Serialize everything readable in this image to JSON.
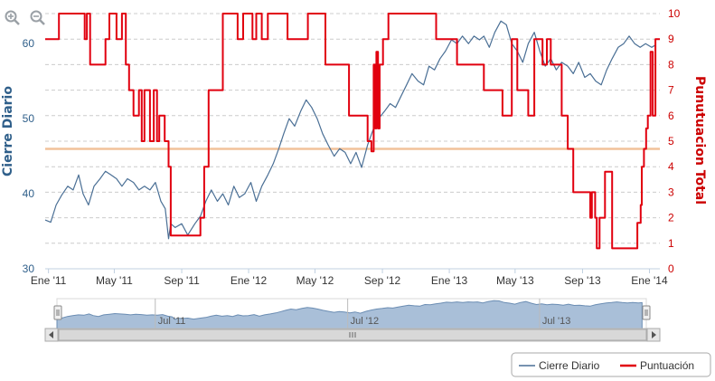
{
  "chart_data": {
    "type": "line",
    "title": "",
    "x_tick_labels": [
      "Ene '11",
      "May '11",
      "Sep '11",
      "Ene '12",
      "May '12",
      "Sep '12",
      "Ene '13",
      "May '13",
      "Sep '13",
      "Ene '14"
    ],
    "x_range": [
      "2010-12-26",
      "2014-01-20"
    ],
    "navigator_labels": [
      "Jul '11",
      "Jul '12",
      "Jul '13"
    ],
    "y_left": {
      "label": "Cierre Diario",
      "ticks": [
        "30",
        "40",
        "50",
        "60"
      ],
      "range": [
        30,
        64
      ],
      "color": "#2f5f8a"
    },
    "y_right": {
      "label": "Punutuacion Total",
      "ticks": [
        "0",
        "1",
        "2",
        "3",
        "4",
        "5",
        "6",
        "7",
        "8",
        "9",
        "10"
      ],
      "range": [
        0,
        10
      ],
      "color": "#cc0000"
    },
    "threshold": {
      "value": 4.7,
      "axis": "right",
      "color": "#f2c29a"
    },
    "series": [
      {
        "name": "Cierre Diario",
        "axis": "left",
        "color": "#4a6f95",
        "points": [
          [
            "2010-12-26",
            36.5
          ],
          [
            "2011-01-05",
            36.2
          ],
          [
            "2011-01-15",
            38.5
          ],
          [
            "2011-01-25",
            39.8
          ],
          [
            "2011-02-05",
            41.0
          ],
          [
            "2011-02-15",
            40.5
          ],
          [
            "2011-02-25",
            42.5
          ],
          [
            "2011-03-05",
            40.0
          ],
          [
            "2011-03-15",
            38.5
          ],
          [
            "2011-03-25",
            41.0
          ],
          [
            "2011-04-05",
            42.0
          ],
          [
            "2011-04-15",
            43.0
          ],
          [
            "2011-04-25",
            42.5
          ],
          [
            "2011-05-05",
            42.0
          ],
          [
            "2011-05-15",
            41.0
          ],
          [
            "2011-05-25",
            42.0
          ],
          [
            "2011-06-05",
            41.5
          ],
          [
            "2011-06-15",
            40.5
          ],
          [
            "2011-06-25",
            41.0
          ],
          [
            "2011-07-05",
            40.5
          ],
          [
            "2011-07-15",
            41.5
          ],
          [
            "2011-07-25",
            39.0
          ],
          [
            "2011-08-02",
            38.0
          ],
          [
            "2011-08-08",
            34.0
          ],
          [
            "2011-08-12",
            36.0
          ],
          [
            "2011-08-20",
            35.5
          ],
          [
            "2011-09-01",
            36.0
          ],
          [
            "2011-09-12",
            34.5
          ],
          [
            "2011-09-25",
            36.0
          ],
          [
            "2011-10-05",
            37.0
          ],
          [
            "2011-10-15",
            39.0
          ],
          [
            "2011-10-25",
            40.5
          ],
          [
            "2011-11-05",
            39.0
          ],
          [
            "2011-11-15",
            40.0
          ],
          [
            "2011-11-25",
            38.5
          ],
          [
            "2011-12-05",
            41.0
          ],
          [
            "2011-12-15",
            39.5
          ],
          [
            "2011-12-25",
            40.0
          ],
          [
            "2012-01-05",
            41.5
          ],
          [
            "2012-01-15",
            39.0
          ],
          [
            "2012-01-25",
            41.0
          ],
          [
            "2012-02-05",
            42.5
          ],
          [
            "2012-02-15",
            44.0
          ],
          [
            "2012-02-25",
            46.0
          ],
          [
            "2012-03-05",
            48.0
          ],
          [
            "2012-03-15",
            50.0
          ],
          [
            "2012-03-25",
            49.0
          ],
          [
            "2012-04-05",
            51.0
          ],
          [
            "2012-04-15",
            52.5
          ],
          [
            "2012-04-25",
            51.5
          ],
          [
            "2012-05-05",
            50.0
          ],
          [
            "2012-05-15",
            48.0
          ],
          [
            "2012-05-25",
            46.5
          ],
          [
            "2012-06-05",
            45.0
          ],
          [
            "2012-06-15",
            46.0
          ],
          [
            "2012-06-25",
            45.5
          ],
          [
            "2012-07-05",
            44.0
          ],
          [
            "2012-07-15",
            45.5
          ],
          [
            "2012-07-25",
            43.5
          ],
          [
            "2012-08-05",
            46.5
          ],
          [
            "2012-08-15",
            48.5
          ],
          [
            "2012-08-25",
            50.0
          ],
          [
            "2012-09-05",
            51.0
          ],
          [
            "2012-09-15",
            52.0
          ],
          [
            "2012-09-25",
            51.5
          ],
          [
            "2012-10-05",
            53.0
          ],
          [
            "2012-10-15",
            54.5
          ],
          [
            "2012-10-25",
            56.0
          ],
          [
            "2012-11-05",
            55.0
          ],
          [
            "2012-11-15",
            54.5
          ],
          [
            "2012-11-25",
            57.0
          ],
          [
            "2012-12-05",
            56.5
          ],
          [
            "2012-12-15",
            58.0
          ],
          [
            "2012-12-25",
            59.0
          ],
          [
            "2013-01-05",
            60.5
          ],
          [
            "2013-01-15",
            60.0
          ],
          [
            "2013-01-25",
            61.0
          ],
          [
            "2013-02-05",
            60.0
          ],
          [
            "2013-02-15",
            61.0
          ],
          [
            "2013-02-25",
            60.5
          ],
          [
            "2013-03-05",
            61.0
          ],
          [
            "2013-03-15",
            59.5
          ],
          [
            "2013-03-25",
            61.5
          ],
          [
            "2013-04-05",
            63.0
          ],
          [
            "2013-04-15",
            62.5
          ],
          [
            "2013-04-25",
            60.0
          ],
          [
            "2013-05-05",
            59.0
          ],
          [
            "2013-05-15",
            57.5
          ],
          [
            "2013-05-25",
            60.0
          ],
          [
            "2013-06-05",
            61.5
          ],
          [
            "2013-06-15",
            59.0
          ],
          [
            "2013-06-25",
            57.0
          ],
          [
            "2013-07-05",
            58.0
          ],
          [
            "2013-07-15",
            56.5
          ],
          [
            "2013-07-25",
            57.5
          ],
          [
            "2013-08-05",
            57.0
          ],
          [
            "2013-08-15",
            56.0
          ],
          [
            "2013-08-25",
            57.5
          ],
          [
            "2013-09-05",
            55.5
          ],
          [
            "2013-09-15",
            56.0
          ],
          [
            "2013-09-25",
            55.0
          ],
          [
            "2013-10-05",
            54.5
          ],
          [
            "2013-10-15",
            56.5
          ],
          [
            "2013-10-25",
            58.0
          ],
          [
            "2013-11-05",
            59.5
          ],
          [
            "2013-11-15",
            60.0
          ],
          [
            "2013-11-25",
            61.0
          ],
          [
            "2013-12-05",
            60.0
          ],
          [
            "2013-12-15",
            59.5
          ],
          [
            "2013-12-25",
            60.0
          ],
          [
            "2014-01-05",
            59.5
          ],
          [
            "2014-01-12",
            59.8
          ]
        ]
      },
      {
        "name": "Puntuación",
        "axis": "right",
        "color": "#e1000f",
        "points": [
          [
            "2010-12-26",
            9
          ],
          [
            "2011-01-20",
            9
          ],
          [
            "2011-01-20",
            10
          ],
          [
            "2011-03-08",
            10
          ],
          [
            "2011-03-08",
            9
          ],
          [
            "2011-03-12",
            9
          ],
          [
            "2011-03-12",
            10
          ],
          [
            "2011-03-18",
            10
          ],
          [
            "2011-03-18",
            8
          ],
          [
            "2011-04-15",
            8
          ],
          [
            "2011-04-15",
            9
          ],
          [
            "2011-04-22",
            9
          ],
          [
            "2011-04-22",
            10
          ],
          [
            "2011-05-05",
            10
          ],
          [
            "2011-05-05",
            9
          ],
          [
            "2011-05-15",
            9
          ],
          [
            "2011-05-15",
            10
          ],
          [
            "2011-05-22",
            10
          ],
          [
            "2011-05-22",
            8
          ],
          [
            "2011-05-28",
            8
          ],
          [
            "2011-05-28",
            7
          ],
          [
            "2011-06-05",
            7
          ],
          [
            "2011-06-05",
            6
          ],
          [
            "2011-06-15",
            6
          ],
          [
            "2011-06-15",
            7
          ],
          [
            "2011-06-20",
            7
          ],
          [
            "2011-06-20",
            5
          ],
          [
            "2011-06-25",
            5
          ],
          [
            "2011-06-25",
            7
          ],
          [
            "2011-07-05",
            7
          ],
          [
            "2011-07-05",
            5
          ],
          [
            "2011-07-12",
            5
          ],
          [
            "2011-07-12",
            7
          ],
          [
            "2011-07-18",
            7
          ],
          [
            "2011-07-18",
            5
          ],
          [
            "2011-07-22",
            5
          ],
          [
            "2011-07-22",
            6
          ],
          [
            "2011-08-01",
            6
          ],
          [
            "2011-08-01",
            5
          ],
          [
            "2011-08-08",
            5
          ],
          [
            "2011-08-08",
            4
          ],
          [
            "2011-08-12",
            4
          ],
          [
            "2011-08-12",
            1.3
          ],
          [
            "2011-10-05",
            1.3
          ],
          [
            "2011-10-05",
            2
          ],
          [
            "2011-10-12",
            2
          ],
          [
            "2011-10-12",
            4
          ],
          [
            "2011-10-20",
            4
          ],
          [
            "2011-10-20",
            7
          ],
          [
            "2011-11-15",
            7
          ],
          [
            "2011-11-15",
            10
          ],
          [
            "2011-12-12",
            10
          ],
          [
            "2011-12-12",
            9
          ],
          [
            "2011-12-22",
            9
          ],
          [
            "2011-12-22",
            10
          ],
          [
            "2012-01-08",
            10
          ],
          [
            "2012-01-08",
            9
          ],
          [
            "2012-01-15",
            9
          ],
          [
            "2012-01-15",
            10
          ],
          [
            "2012-01-25",
            10
          ],
          [
            "2012-01-25",
            9
          ],
          [
            "2012-02-05",
            9
          ],
          [
            "2012-02-05",
            10
          ],
          [
            "2012-03-12",
            10
          ],
          [
            "2012-03-12",
            9
          ],
          [
            "2012-04-18",
            9
          ],
          [
            "2012-04-18",
            10
          ],
          [
            "2012-05-20",
            10
          ],
          [
            "2012-05-20",
            8
          ],
          [
            "2012-07-02",
            8
          ],
          [
            "2012-07-02",
            6
          ],
          [
            "2012-08-05",
            6
          ],
          [
            "2012-08-05",
            5
          ],
          [
            "2012-08-12",
            5
          ],
          [
            "2012-08-12",
            4.6
          ],
          [
            "2012-08-16",
            4.6
          ],
          [
            "2012-08-16",
            8
          ],
          [
            "2012-08-19",
            8
          ],
          [
            "2012-08-19",
            5.5
          ],
          [
            "2012-08-21",
            5.5
          ],
          [
            "2012-08-21",
            8.5
          ],
          [
            "2012-08-24",
            8.5
          ],
          [
            "2012-08-24",
            5.5
          ],
          [
            "2012-08-27",
            5.5
          ],
          [
            "2012-08-27",
            8
          ],
          [
            "2012-09-02",
            8
          ],
          [
            "2012-09-02",
            9
          ],
          [
            "2012-09-12",
            9
          ],
          [
            "2012-09-12",
            10
          ],
          [
            "2012-12-08",
            10
          ],
          [
            "2012-12-08",
            9
          ],
          [
            "2013-01-15",
            9
          ],
          [
            "2013-01-15",
            8
          ],
          [
            "2013-03-05",
            8
          ],
          [
            "2013-03-05",
            7
          ],
          [
            "2013-04-08",
            7
          ],
          [
            "2013-04-08",
            6
          ],
          [
            "2013-04-25",
            6
          ],
          [
            "2013-04-25",
            9
          ],
          [
            "2013-05-05",
            9
          ],
          [
            "2013-05-05",
            7
          ],
          [
            "2013-05-25",
            7
          ],
          [
            "2013-05-25",
            6
          ],
          [
            "2013-06-05",
            6
          ],
          [
            "2013-06-05",
            9
          ],
          [
            "2013-06-20",
            9
          ],
          [
            "2013-06-20",
            8
          ],
          [
            "2013-06-28",
            8
          ],
          [
            "2013-06-28",
            9
          ],
          [
            "2013-07-05",
            9
          ],
          [
            "2013-07-05",
            8
          ],
          [
            "2013-07-25",
            8
          ],
          [
            "2013-07-25",
            6
          ],
          [
            "2013-08-05",
            6
          ],
          [
            "2013-08-05",
            4.7
          ],
          [
            "2013-08-15",
            4.7
          ],
          [
            "2013-08-15",
            3
          ],
          [
            "2013-09-15",
            3
          ],
          [
            "2013-09-15",
            2
          ],
          [
            "2013-09-18",
            2
          ],
          [
            "2013-09-18",
            3
          ],
          [
            "2013-09-24",
            3
          ],
          [
            "2013-09-24",
            2
          ],
          [
            "2013-09-27",
            2
          ],
          [
            "2013-09-27",
            0.8
          ],
          [
            "2013-10-02",
            0.8
          ],
          [
            "2013-10-02",
            2
          ],
          [
            "2013-10-12",
            2
          ],
          [
            "2013-10-12",
            3.8
          ],
          [
            "2013-10-25",
            3.8
          ],
          [
            "2013-10-25",
            0.8
          ],
          [
            "2013-12-10",
            0.8
          ],
          [
            "2013-12-10",
            1.8
          ],
          [
            "2013-12-16",
            1.8
          ],
          [
            "2013-12-16",
            2.5
          ],
          [
            "2013-12-18",
            2.5
          ],
          [
            "2013-12-18",
            4
          ],
          [
            "2013-12-22",
            4
          ],
          [
            "2013-12-22",
            4.7
          ],
          [
            "2013-12-26",
            4.7
          ],
          [
            "2013-12-26",
            5.5
          ],
          [
            "2013-12-29",
            5.5
          ],
          [
            "2013-12-29",
            6
          ],
          [
            "2014-01-03",
            6
          ],
          [
            "2014-01-03",
            8.5
          ],
          [
            "2014-01-07",
            8.5
          ],
          [
            "2014-01-07",
            6
          ],
          [
            "2014-01-12",
            6
          ],
          [
            "2014-01-12",
            9
          ],
          [
            "2014-01-20",
            9
          ]
        ]
      }
    ],
    "grid": true,
    "legend_position": "bottom-right"
  }
}
